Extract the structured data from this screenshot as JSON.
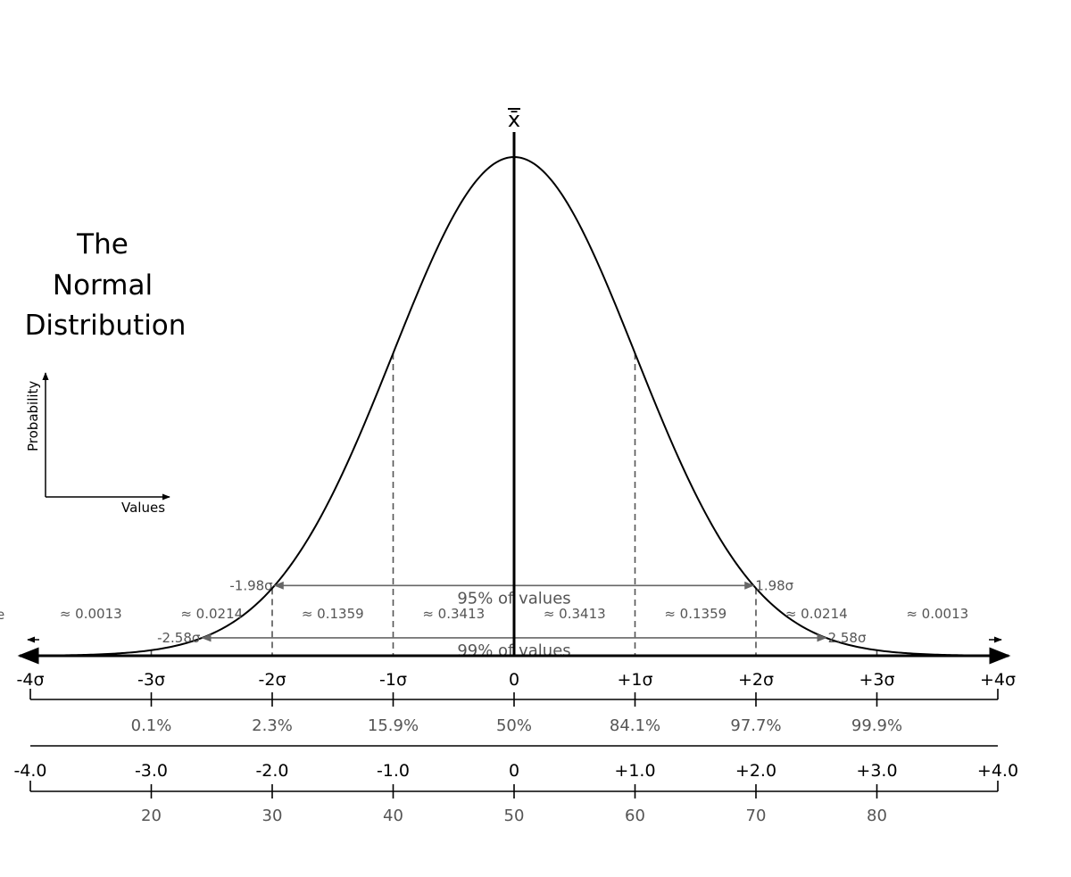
{
  "title": {
    "lines": [
      "The",
      "Normal",
      "Distribution"
    ]
  },
  "legend": {
    "y_label": "Probability",
    "x_label": "Values"
  },
  "edge_fragment": "e",
  "chart_data": {
    "type": "line",
    "title": "The Normal Distribution",
    "mean_label": "x̄",
    "x_range": [
      -4,
      4
    ],
    "curve": {
      "function": "standard normal density",
      "mean": 0,
      "sd": 1
    },
    "sigma_ticks": [
      {
        "x": -4,
        "label": "-4σ"
      },
      {
        "x": -3,
        "label": "-3σ"
      },
      {
        "x": -2,
        "label": "-2σ"
      },
      {
        "x": -1,
        "label": "-1σ"
      },
      {
        "x": 0,
        "label": "0"
      },
      {
        "x": 1,
        "label": "+1σ"
      },
      {
        "x": 2,
        "label": "+2σ"
      },
      {
        "x": 3,
        "label": "+3σ"
      },
      {
        "x": 4,
        "label": "+4σ"
      }
    ],
    "band_probabilities": [
      {
        "from": -4,
        "to": -3,
        "label": "≈ 0.0013"
      },
      {
        "from": -3,
        "to": -2,
        "label": "≈ 0.0214"
      },
      {
        "from": -2,
        "to": -1,
        "label": "≈ 0.1359"
      },
      {
        "from": -1,
        "to": 0,
        "label": "≈ 0.3413"
      },
      {
        "from": 0,
        "to": 1,
        "label": "≈ 0.3413"
      },
      {
        "from": 1,
        "to": 2,
        "label": "≈ 0.1359"
      },
      {
        "from": 2,
        "to": 3,
        "label": "≈ 0.0214"
      },
      {
        "from": 3,
        "to": 4,
        "label": "≈ 0.0013"
      }
    ],
    "intervals": [
      {
        "z": 1.98,
        "low_label": "-1.98σ",
        "high_label": "1.98σ",
        "label": "95% of values"
      },
      {
        "z": 2.58,
        "low_label": "-2.58σ",
        "high_label": "2.58σ",
        "label": "99% of values"
      }
    ],
    "percentile_scale": [
      {
        "x": -3,
        "label": "0.1%"
      },
      {
        "x": -2,
        "label": "2.3%"
      },
      {
        "x": -1,
        "label": "15.9%"
      },
      {
        "x": 0,
        "label": "50%"
      },
      {
        "x": 1,
        "label": "84.1%"
      },
      {
        "x": 2,
        "label": "97.7%"
      },
      {
        "x": 3,
        "label": "99.9%"
      }
    ],
    "z_scale": [
      {
        "x": -4,
        "label": "-4.0"
      },
      {
        "x": -3,
        "label": "-3.0"
      },
      {
        "x": -2,
        "label": "-2.0"
      },
      {
        "x": -1,
        "label": "-1.0"
      },
      {
        "x": 0,
        "label": "0"
      },
      {
        "x": 1,
        "label": "+1.0"
      },
      {
        "x": 2,
        "label": "+2.0"
      },
      {
        "x": 3,
        "label": "+3.0"
      },
      {
        "x": 4,
        "label": "+4.0"
      }
    ],
    "t_scale": [
      {
        "x": -3,
        "label": "20"
      },
      {
        "x": -2,
        "label": "30"
      },
      {
        "x": -1,
        "label": "40"
      },
      {
        "x": 0,
        "label": "50"
      },
      {
        "x": 1,
        "label": "60"
      },
      {
        "x": 2,
        "label": "70"
      },
      {
        "x": 3,
        "label": "80"
      }
    ],
    "colors": {
      "curve": "#000000",
      "guides": "#666666",
      "gray_text": "#555555"
    }
  }
}
